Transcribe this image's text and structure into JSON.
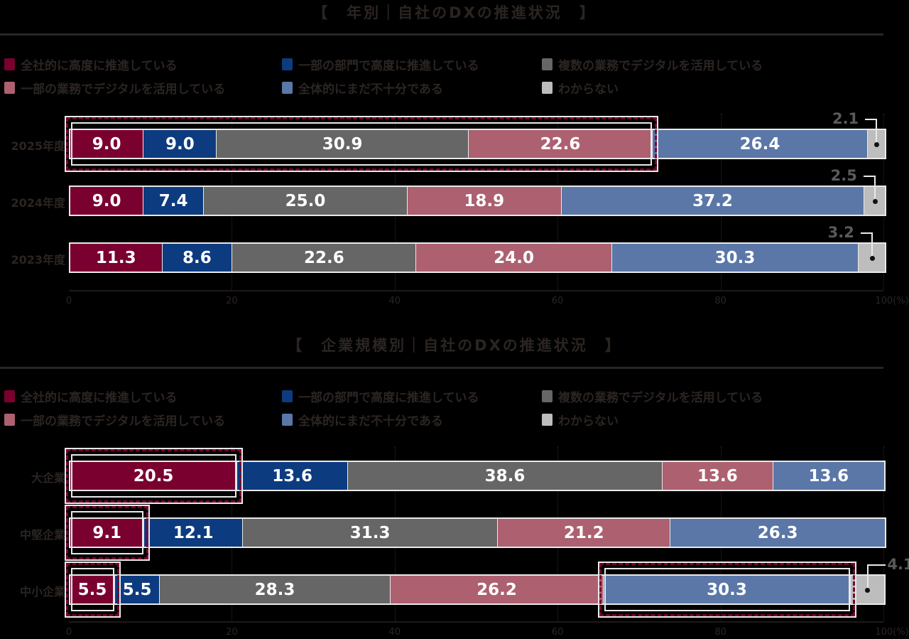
{
  "colors": {
    "company_wide": "#7a0030",
    "some_departments": "#0d3b80",
    "multiple_operations": "#666666",
    "some_operations": "#ad6070",
    "insufficient": "#5a77a8",
    "unknown": "#bdbdbd",
    "highlight": "#7a0030"
  },
  "legend": [
    {
      "key": "company_wide",
      "label": "全社的に高度に推進している"
    },
    {
      "key": "some_departments",
      "label": "一部の部門で高度に推進している"
    },
    {
      "key": "multiple_operations",
      "label": "複数の業務でデジタルを活用している"
    },
    {
      "key": "some_operations",
      "label": "一部の業務でデジタルを活用している"
    },
    {
      "key": "insufficient",
      "label": "全体的にまだ不十分である"
    },
    {
      "key": "unknown",
      "label": "わからない"
    }
  ],
  "chart_data": [
    {
      "type": "bar",
      "orientation": "horizontal-stacked-100",
      "title": "【　年別｜自社のDXの推進状況　】",
      "xlabel": "",
      "ylabel": "",
      "x_ticks": [
        "0",
        "20",
        "40",
        "60",
        "80",
        "100(%)"
      ],
      "xlim": [
        0,
        100
      ],
      "categories": [
        "2025年度",
        "2024年度",
        "2023年度"
      ],
      "series": [
        {
          "name": "全社的に高度に推進している",
          "values": [
            9.0,
            9.0,
            11.3
          ]
        },
        {
          "name": "一部の部門で高度に推進している",
          "values": [
            9.0,
            7.4,
            8.6
          ]
        },
        {
          "name": "複数の業務でデジタルを活用している",
          "values": [
            30.9,
            25.0,
            22.6
          ]
        },
        {
          "name": "一部の業務でデジタルを活用している",
          "values": [
            22.6,
            18.9,
            24.0
          ]
        },
        {
          "name": "全体的にまだ不十分である",
          "values": [
            26.4,
            37.2,
            30.3
          ]
        },
        {
          "name": "わからない",
          "values": [
            2.1,
            2.5,
            3.2
          ]
        }
      ],
      "highlights": [
        {
          "category": "2025年度",
          "from_series": 0,
          "to_series": 3
        }
      ],
      "legend_position": "top"
    },
    {
      "type": "bar",
      "orientation": "horizontal-stacked-100",
      "title": "【　企業規模別｜自社のDXの推進状況　】",
      "xlabel": "",
      "ylabel": "",
      "x_ticks": [
        "0",
        "20",
        "40",
        "60",
        "80",
        "100(%)"
      ],
      "xlim": [
        0,
        100
      ],
      "categories": [
        "大企業",
        "中堅企業",
        "中小企業"
      ],
      "series": [
        {
          "name": "全社的に高度に推進している",
          "values": [
            20.5,
            9.1,
            5.5
          ]
        },
        {
          "name": "一部の部門で高度に推進している",
          "values": [
            13.6,
            12.1,
            5.5
          ]
        },
        {
          "name": "複数の業務でデジタルを活用している",
          "values": [
            38.6,
            31.3,
            28.3
          ]
        },
        {
          "name": "一部の業務でデジタルを活用している",
          "values": [
            13.6,
            21.2,
            26.2
          ]
        },
        {
          "name": "全体的にまだ不十分である",
          "values": [
            13.6,
            26.3,
            30.3
          ]
        },
        {
          "name": "わからない",
          "values": [
            0,
            0,
            4.1
          ]
        }
      ],
      "highlights": [
        {
          "category": "大企業",
          "from_series": 0,
          "to_series": 0
        },
        {
          "category": "中堅企業",
          "from_series": 0,
          "to_series": 0
        },
        {
          "category": "中小企業",
          "from_series": 0,
          "to_series": 0
        },
        {
          "category": "中小企業",
          "from_series": 4,
          "to_series": 4
        }
      ],
      "legend_position": "top"
    }
  ]
}
